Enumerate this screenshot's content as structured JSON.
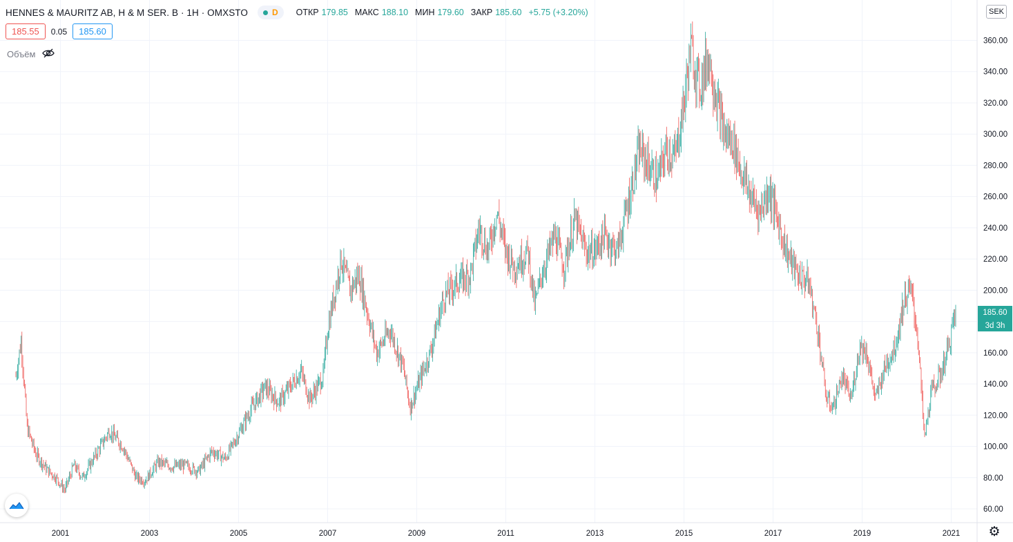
{
  "legend": {
    "symbol": "HENNES & MAURITZ AB, H & M SER. B · 1Н · OMXSTO",
    "interval_badge": "D",
    "open_label": "ОТКР",
    "open_value": "179.85",
    "high_label": "МАКС",
    "high_value": "188.10",
    "low_label": "МИН",
    "low_value": "179.60",
    "close_label": "ЗАКР",
    "close_value": "185.60",
    "change": "+5.75 (+3.20%)"
  },
  "trade": {
    "sell_price": "185.55",
    "spread": "0.05",
    "buy_price": "185.60"
  },
  "volume_label": "Объём",
  "currency": "SEK",
  "last_price_tag": "185.60",
  "countdown_tag": "3d 3h",
  "colors": {
    "up": "#26a69a",
    "down": "#ef5350",
    "grid": "#f0f3fa",
    "tag": "#26a69a"
  },
  "icons": {
    "visibility": "eye-off-icon",
    "settings": "gear-icon",
    "logo": "tradingview-logo-icon"
  },
  "chart_data": {
    "type": "candlestick",
    "title": "HENNES & MAURITZ AB, H & M SER. B · 1Н · OMXSTO",
    "grid": true,
    "ylim": [
      50,
      370
    ],
    "y_ticks": [
      "60.00",
      "80.00",
      "100.00",
      "120.00",
      "140.00",
      "160.00",
      "180.00",
      "200.00",
      "220.00",
      "240.00",
      "260.00",
      "280.00",
      "300.00",
      "320.00",
      "340.00",
      "360.00"
    ],
    "x_ticks": [
      "2001",
      "2003",
      "2005",
      "2007",
      "2009",
      "2011",
      "2013",
      "2015",
      "2017",
      "2019",
      "2021"
    ],
    "x_range": [
      2000.0,
      2021.1
    ],
    "series": [
      {
        "values": [
          [
            2000.0,
            145
          ],
          [
            2000.12,
            168
          ],
          [
            2000.25,
            112
          ],
          [
            2000.45,
            95
          ],
          [
            2000.7,
            85
          ],
          [
            2000.9,
            80
          ],
          [
            2001.1,
            72
          ],
          [
            2001.3,
            88
          ],
          [
            2001.5,
            80
          ],
          [
            2001.8,
            95
          ],
          [
            2002.1,
            110
          ],
          [
            2002.4,
            100
          ],
          [
            2002.7,
            80
          ],
          [
            2002.9,
            78
          ],
          [
            2003.2,
            90
          ],
          [
            2003.5,
            87
          ],
          [
            2003.8,
            88
          ],
          [
            2004.1,
            84
          ],
          [
            2004.4,
            97
          ],
          [
            2004.7,
            92
          ],
          [
            2005.0,
            108
          ],
          [
            2005.3,
            125
          ],
          [
            2005.6,
            138
          ],
          [
            2005.9,
            128
          ],
          [
            2006.2,
            140
          ],
          [
            2006.4,
            148
          ],
          [
            2006.6,
            130
          ],
          [
            2006.9,
            145
          ],
          [
            2007.0,
            175
          ],
          [
            2007.3,
            220
          ],
          [
            2007.5,
            200
          ],
          [
            2007.7,
            210
          ],
          [
            2007.9,
            185
          ],
          [
            2008.1,
            160
          ],
          [
            2008.4,
            175
          ],
          [
            2008.7,
            150
          ],
          [
            2008.85,
            125
          ],
          [
            2009.1,
            145
          ],
          [
            2009.3,
            160
          ],
          [
            2009.6,
            195
          ],
          [
            2009.9,
            205
          ],
          [
            2010.2,
            210
          ],
          [
            2010.4,
            240
          ],
          [
            2010.6,
            225
          ],
          [
            2010.8,
            250
          ],
          [
            2011.0,
            225
          ],
          [
            2011.2,
            215
          ],
          [
            2011.5,
            225
          ],
          [
            2011.65,
            190
          ],
          [
            2011.8,
            210
          ],
          [
            2012.1,
            235
          ],
          [
            2012.3,
            215
          ],
          [
            2012.55,
            245
          ],
          [
            2012.8,
            225
          ],
          [
            2013.0,
            225
          ],
          [
            2013.2,
            235
          ],
          [
            2013.5,
            225
          ],
          [
            2013.7,
            250
          ],
          [
            2013.85,
            270
          ],
          [
            2014.0,
            290
          ],
          [
            2014.2,
            280
          ],
          [
            2014.4,
            270
          ],
          [
            2014.6,
            290
          ],
          [
            2014.8,
            285
          ],
          [
            2015.0,
            320
          ],
          [
            2015.15,
            355
          ],
          [
            2015.35,
            330
          ],
          [
            2015.55,
            350
          ],
          [
            2015.75,
            320
          ],
          [
            2015.9,
            300
          ],
          [
            2016.1,
            295
          ],
          [
            2016.3,
            275
          ],
          [
            2016.5,
            260
          ],
          [
            2016.7,
            250
          ],
          [
            2016.9,
            265
          ],
          [
            2017.1,
            245
          ],
          [
            2017.3,
            225
          ],
          [
            2017.55,
            210
          ],
          [
            2017.8,
            205
          ],
          [
            2018.0,
            175
          ],
          [
            2018.2,
            130
          ],
          [
            2018.35,
            125
          ],
          [
            2018.55,
            145
          ],
          [
            2018.75,
            130
          ],
          [
            2018.95,
            165
          ],
          [
            2019.1,
            160
          ],
          [
            2019.3,
            130
          ],
          [
            2019.5,
            150
          ],
          [
            2019.75,
            165
          ],
          [
            2019.95,
            195
          ],
          [
            2020.1,
            200
          ],
          [
            2020.25,
            170
          ],
          [
            2020.4,
            105
          ],
          [
            2020.55,
            135
          ],
          [
            2020.75,
            145
          ],
          [
            2020.95,
            165
          ],
          [
            2021.05,
            180
          ],
          [
            2021.1,
            185.6
          ]
        ]
      }
    ]
  }
}
